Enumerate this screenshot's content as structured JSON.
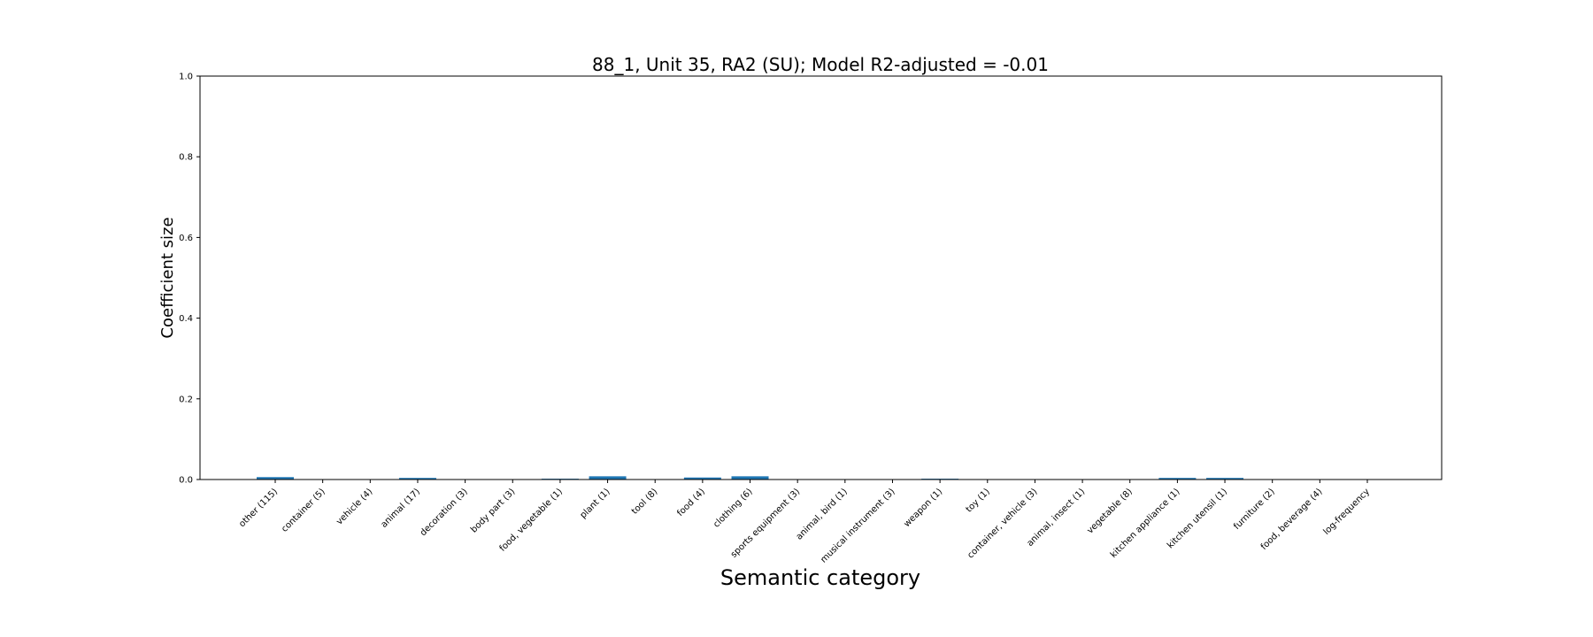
{
  "chart_data": {
    "type": "bar",
    "title": "88_1, Unit 35, RA2 (SU); Model R2-adjusted = -0.01",
    "xlabel": "Semantic category",
    "ylabel": "Coefficient size",
    "ylim": [
      0,
      1.0
    ],
    "yticks": [
      "0.0",
      "0.2",
      "0.4",
      "0.6",
      "0.8",
      "1.0"
    ],
    "ytick_values": [
      0,
      0.2,
      0.4,
      0.6,
      0.8,
      1.0
    ],
    "bar_color": "#1f77b4",
    "grid": false,
    "categories": [
      "other (115)",
      "container (5)",
      "vehicle (4)",
      "animal (17)",
      "decoration (3)",
      "body part (3)",
      "food, vegetable (1)",
      "plant (1)",
      "tool (8)",
      "food (4)",
      "clothing (6)",
      "sports equipment (3)",
      "animal, bird (1)",
      "musical instrument (3)",
      "weapon (1)",
      "toy (1)",
      "container, vehicle (3)",
      "animal, insect (1)",
      "vegetable (8)",
      "kitchen appliance (1)",
      "kitchen utensil (1)",
      "furniture (2)",
      "food, beverage (4)",
      "log-frequency"
    ],
    "values": [
      0.006,
      0.0,
      0.0,
      0.004,
      0.0,
      0.0,
      0.002,
      0.008,
      0.0,
      0.005,
      0.008,
      0.0,
      0.0,
      0.0,
      0.002,
      0.0,
      0.0,
      0.0,
      0.0,
      0.004,
      0.004,
      0.0,
      0.0,
      0.0
    ]
  }
}
